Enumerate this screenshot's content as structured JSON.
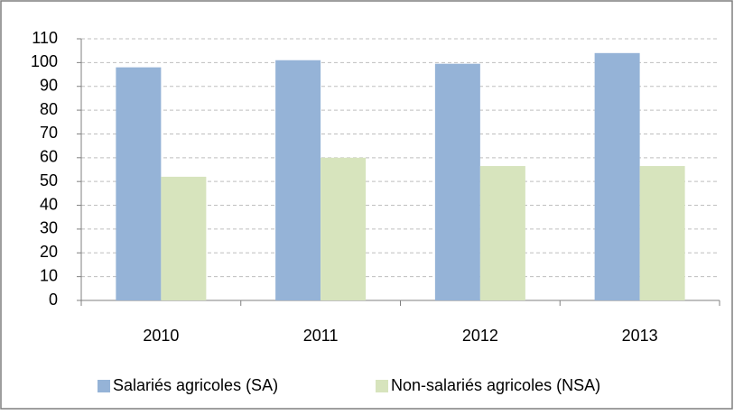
{
  "chart_data": {
    "type": "bar",
    "categories": [
      "2010",
      "2011",
      "2012",
      "2013"
    ],
    "series": [
      {
        "name": "Salariés agricoles (SA)",
        "color": "#95b3d7",
        "values": [
          98,
          101,
          99.5,
          104
        ]
      },
      {
        "name": "Non-salariés agricoles (NSA)",
        "color": "#d7e4bd",
        "values": [
          52,
          60,
          56.5,
          56.5
        ]
      }
    ],
    "ylim": [
      0,
      110
    ],
    "yticks": [
      0,
      10,
      20,
      30,
      40,
      50,
      60,
      70,
      80,
      90,
      100,
      110
    ],
    "grid": true,
    "legend": "bottom"
  }
}
